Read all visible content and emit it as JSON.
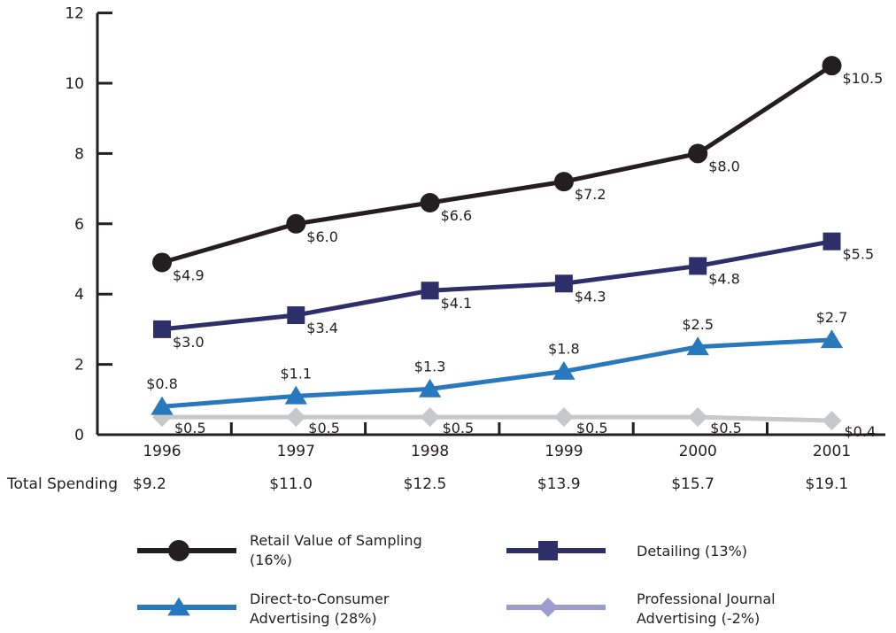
{
  "chart_data": {
    "type": "line",
    "categories": [
      "1996",
      "1997",
      "1998",
      "1999",
      "2000",
      "2001"
    ],
    "ylim": [
      0,
      12
    ],
    "yticks": [
      0,
      2,
      4,
      6,
      8,
      10,
      12
    ],
    "grid": false,
    "legend_position": "bottom",
    "totals_label": "Total Spending",
    "totals": [
      "$9.2",
      "$11.0",
      "$12.5",
      "$13.9",
      "$15.7",
      "$19.1"
    ],
    "series": [
      {
        "name": "Retail Value of Sampling",
        "legend_lines": [
          "Retail Value of Sampling",
          "(16%)"
        ],
        "marker": "circle",
        "color": "#231f20",
        "legend_color": "#231f20",
        "values": [
          4.9,
          6.0,
          6.6,
          7.2,
          8.0,
          10.5
        ],
        "labels": [
          "$4.9",
          "$6.0",
          "$6.6",
          "$7.2",
          "$8.0",
          "$10.5"
        ]
      },
      {
        "name": "Detailing",
        "legend_lines": [
          "Detailing (13%)"
        ],
        "marker": "square",
        "color": "#2e2e6b",
        "legend_color": "#2e2e6b",
        "values": [
          3.0,
          3.4,
          4.1,
          4.3,
          4.8,
          5.5
        ],
        "labels": [
          "$3.0",
          "$3.4",
          "$4.1",
          "$4.3",
          "$4.8",
          "$5.5"
        ]
      },
      {
        "name": "Direct-to-Consumer Advertising",
        "legend_lines": [
          "Direct-to-Consumer",
          "Advertising (28%)"
        ],
        "marker": "triangle",
        "color": "#2878bd",
        "legend_color": "#2878bd",
        "values": [
          0.8,
          1.1,
          1.3,
          1.8,
          2.5,
          2.7
        ],
        "labels": [
          "$0.8",
          "$1.1",
          "$1.3",
          "$1.8",
          "$2.5",
          "$2.7"
        ]
      },
      {
        "name": "Professional Journal Advertising",
        "legend_lines": [
          "Professional Journal",
          "Advertising (-2%)"
        ],
        "marker": "diamond",
        "color": "#c7c8ca",
        "legend_color": "#9e9ccf",
        "values": [
          0.5,
          0.5,
          0.5,
          0.5,
          0.5,
          0.4
        ],
        "labels": [
          "$0.5",
          "$0.5",
          "$0.5",
          "$0.5",
          "$0.5",
          "$0.4"
        ]
      }
    ]
  }
}
